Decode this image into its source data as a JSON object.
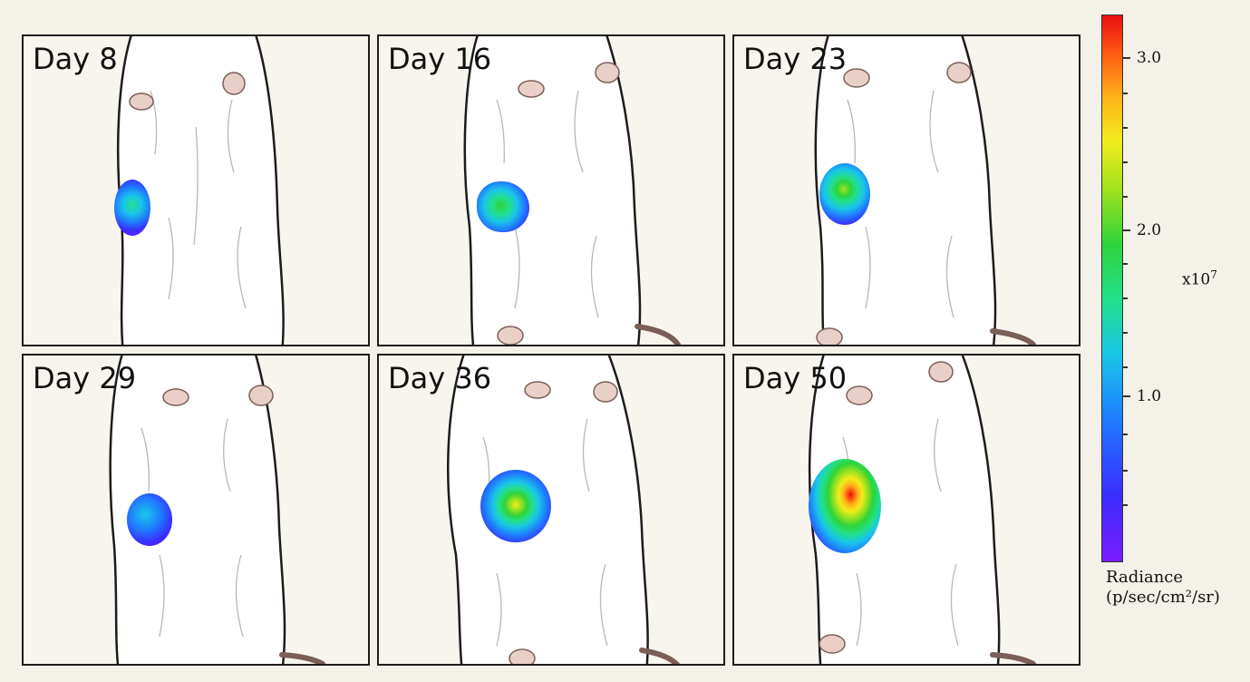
{
  "panels": [
    {
      "label": "Day 8",
      "signal_level": 0.35
    },
    {
      "label": "Day 16",
      "signal_level": 0.45
    },
    {
      "label": "Day 23",
      "signal_level": 0.55
    },
    {
      "label": "Day 29",
      "signal_level": 0.4
    },
    {
      "label": "Day 36",
      "signal_level": 0.62
    },
    {
      "label": "Day 50",
      "signal_level": 0.95
    }
  ],
  "colorbar": {
    "tick_labels": [
      "3.0",
      "2.0",
      "1.0"
    ],
    "exponent_base": "x10",
    "exponent_power": "7",
    "title_line1": "Radiance",
    "title_line2": "(p/sec/cm²/sr)",
    "colors": [
      "#7a1cff",
      "#1f7cff",
      "#19c7e8",
      "#2ed43a",
      "#f2ec1c",
      "#ff5a14",
      "#e80e0e"
    ]
  }
}
